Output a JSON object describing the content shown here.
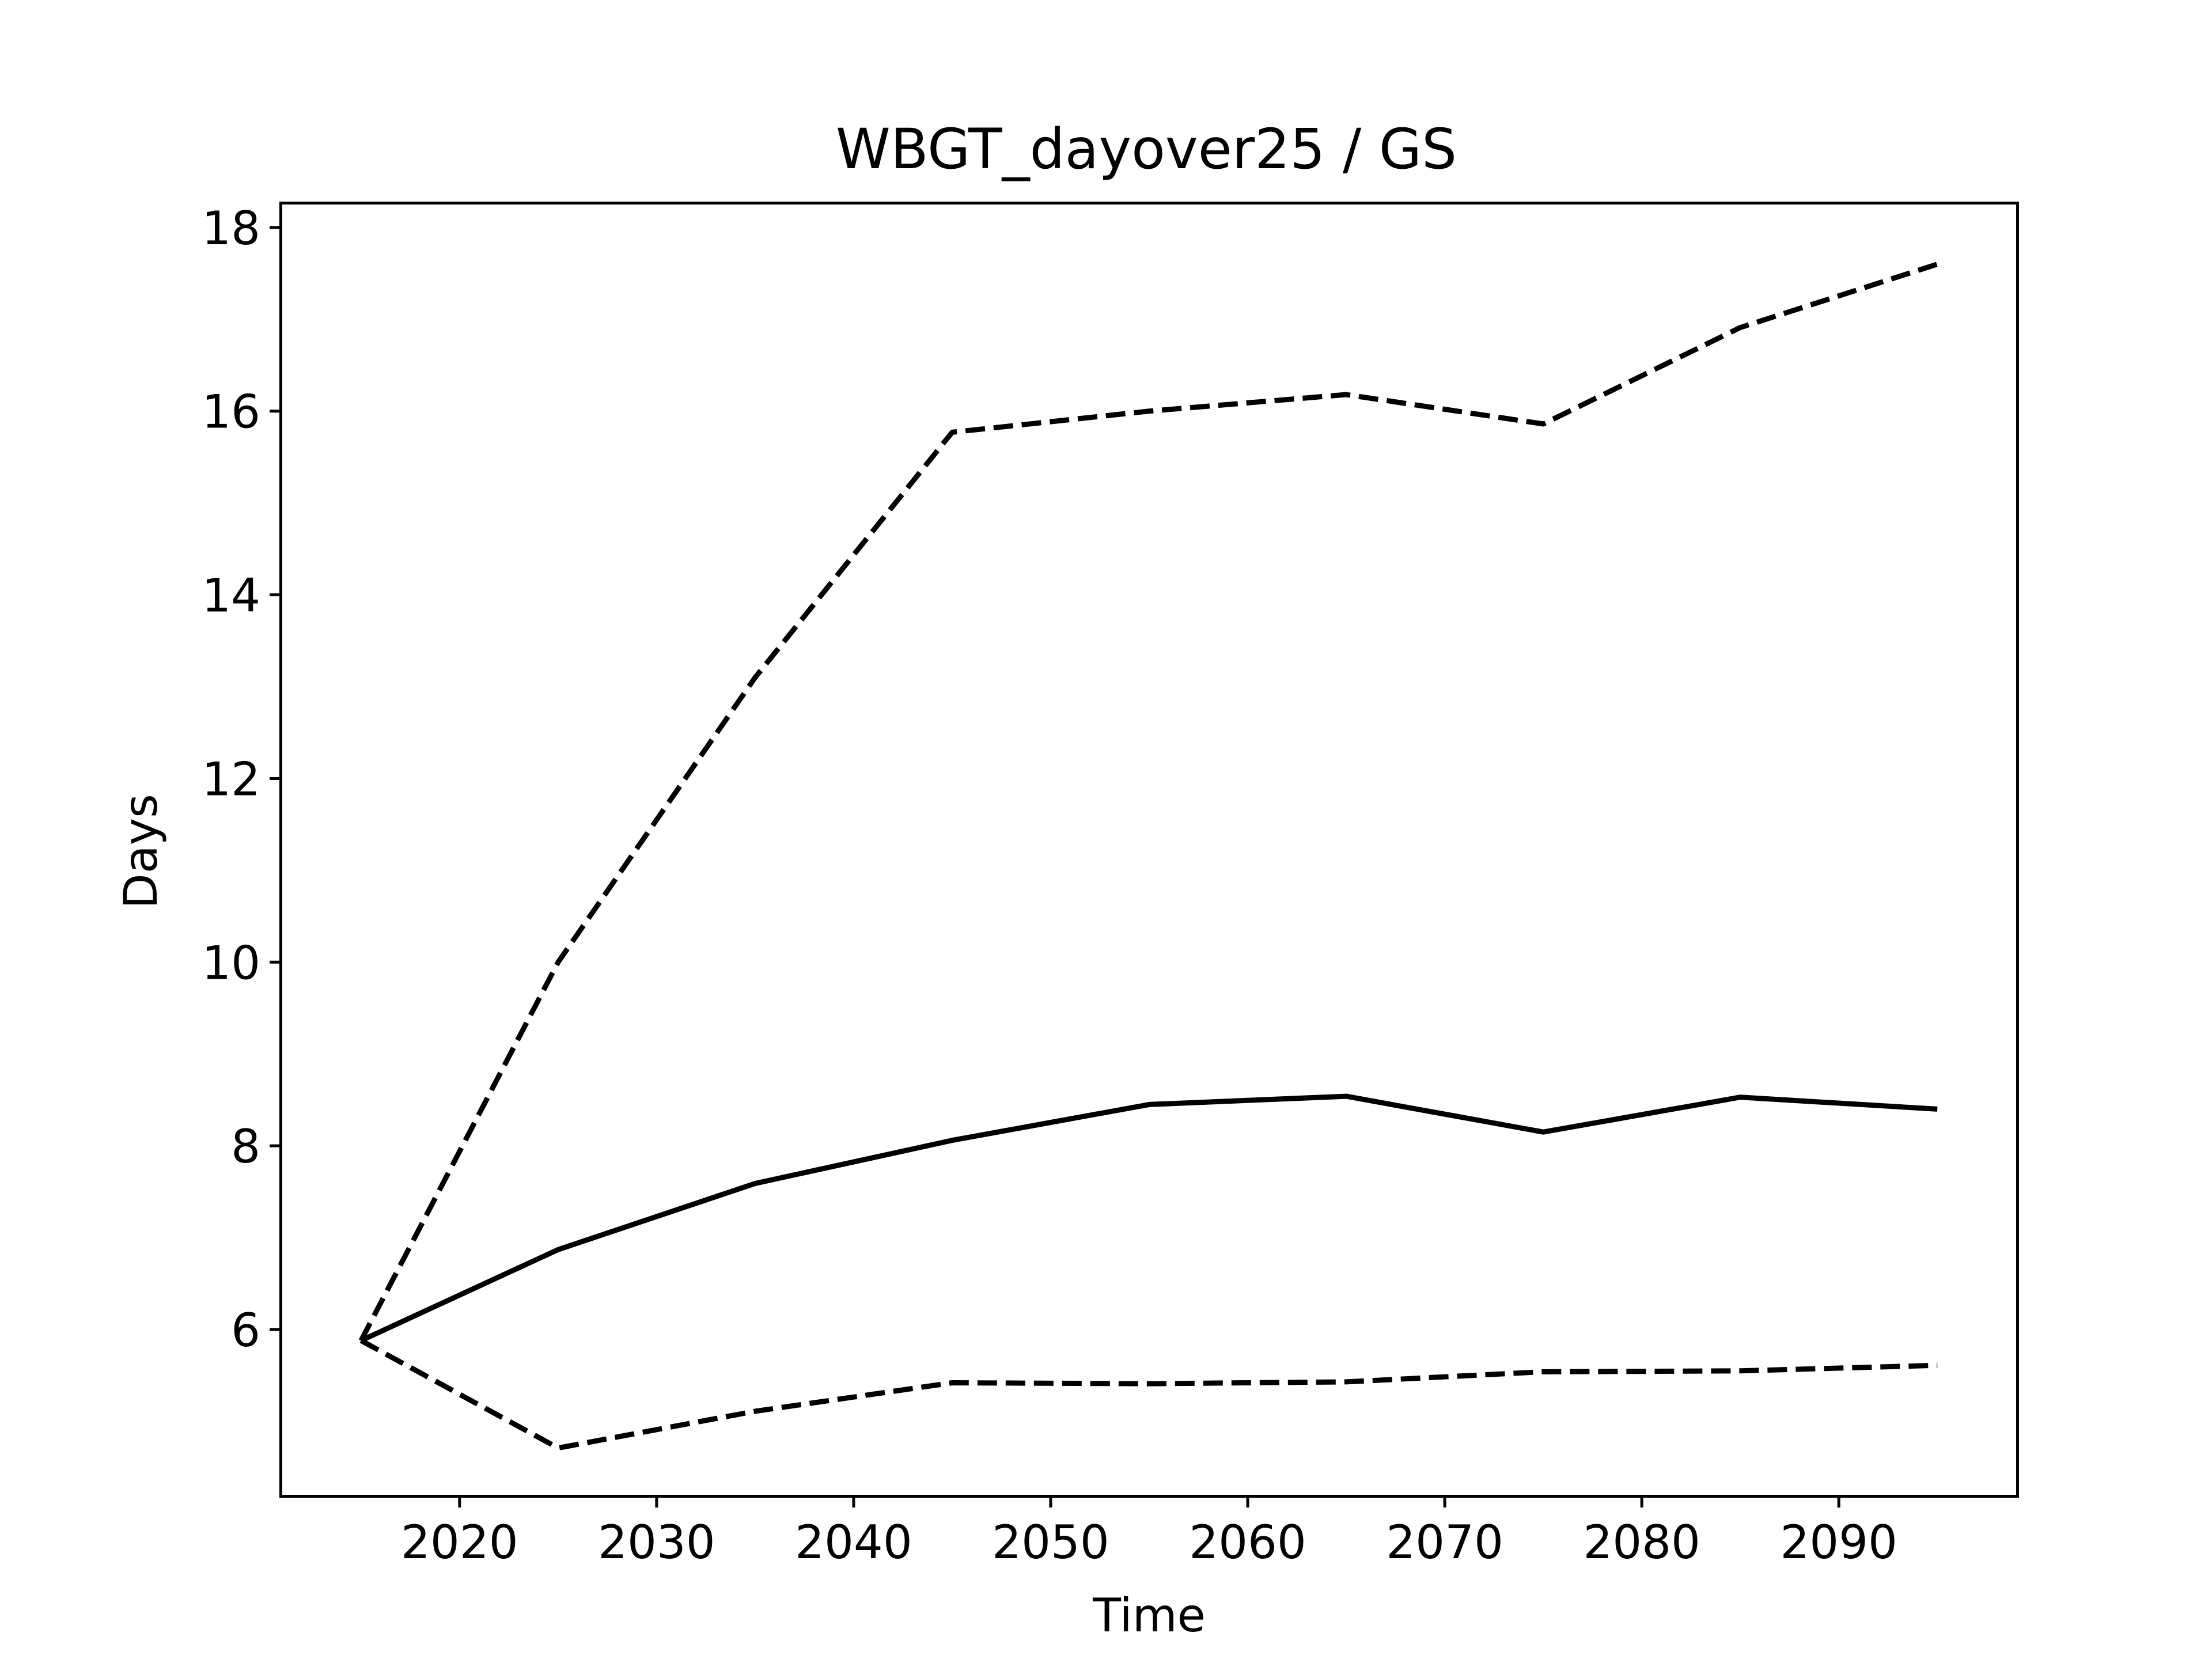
{
  "chart_data": {
    "type": "line",
    "title": "WBGT_dayover25 / GS",
    "xlabel": "Time",
    "ylabel": "Days",
    "xlim": [
      2011,
      2099
    ],
    "ylim": [
      4.2,
      18.25
    ],
    "x_ticks": [
      2020,
      2030,
      2040,
      2050,
      2060,
      2070,
      2080,
      2090
    ],
    "y_ticks": [
      6,
      8,
      10,
      12,
      14,
      16,
      18
    ],
    "grid": false,
    "legend": "none",
    "x": [
      2015,
      2025,
      2035,
      2045,
      2055,
      2065,
      2075,
      2085,
      2095
    ],
    "series": [
      {
        "style": "solid",
        "color": "#000000",
        "values": [
          5.88,
          6.87,
          7.59,
          8.06,
          8.45,
          8.54,
          8.15,
          8.53,
          8.4
        ]
      },
      {
        "style": "dashed",
        "color": "#000000",
        "values": [
          5.88,
          10.0,
          13.1,
          15.77,
          16.0,
          16.18,
          15.86,
          16.91,
          17.6
        ]
      },
      {
        "style": "dashed",
        "color": "#000000",
        "values": [
          5.88,
          4.71,
          5.11,
          5.42,
          5.41,
          5.43,
          5.54,
          5.55,
          5.61
        ]
      }
    ]
  }
}
